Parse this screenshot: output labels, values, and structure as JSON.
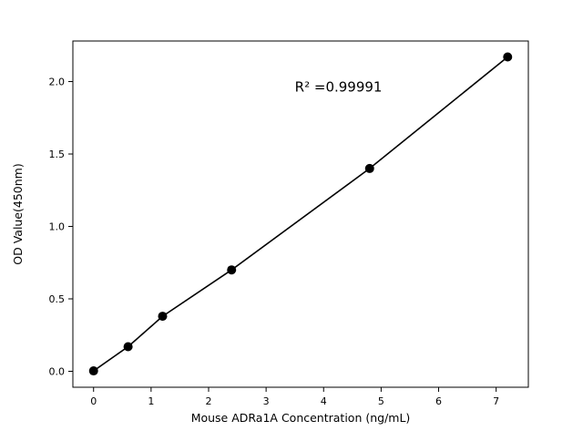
{
  "chart_data": {
    "type": "scatter",
    "title": "",
    "xlabel": "Mouse ADRa1A Concentration (ng/mL)",
    "ylabel": "OD Value(450nm)",
    "x": [
      0,
      0.6,
      1.2,
      2.4,
      4.8,
      7.2
    ],
    "y": [
      0.003,
      0.17,
      0.38,
      0.7,
      1.4,
      2.17
    ],
    "line": true,
    "marker": "circle",
    "marker_color": "#000000",
    "line_color": "#000000",
    "xlim": [
      -0.36,
      7.56
    ],
    "ylim": [
      -0.11,
      2.28
    ],
    "xticks": [
      0,
      1,
      2,
      3,
      4,
      5,
      6,
      7
    ],
    "xtick_labels": [
      "0",
      "1",
      "2",
      "3",
      "4",
      "5",
      "6",
      "7"
    ],
    "yticks": [
      0.0,
      0.5,
      1.0,
      1.5,
      2.0
    ],
    "ytick_labels": [
      "0.0",
      "0.5",
      "1.0",
      "1.5",
      "2.0"
    ],
    "grid": false,
    "legend": "none",
    "annotation": {
      "text": "R² =0.99991",
      "x": 3.5,
      "y": 1.93
    }
  }
}
